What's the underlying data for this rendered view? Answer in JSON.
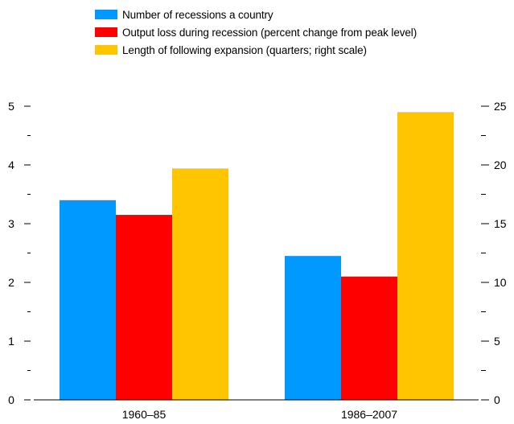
{
  "chart_data": {
    "type": "bar",
    "categories": [
      "1960–85",
      "1986–2007"
    ],
    "series": [
      {
        "name": "Number of recessions a country",
        "color": "#0099ff",
        "axis": "left",
        "values": [
          3.4,
          2.45
        ]
      },
      {
        "name": "Output loss during recession (percent change from peak level)",
        "color": "#ff0000",
        "axis": "left",
        "values": [
          3.15,
          2.1
        ]
      },
      {
        "name": "Length of following expansion (quarters; right scale)",
        "color": "#ffc600",
        "axis": "right",
        "values": [
          19.7,
          24.5
        ]
      }
    ],
    "left_axis": {
      "ylim": [
        0,
        5
      ],
      "ticks": [
        "0",
        "1",
        "2",
        "3",
        "4",
        "5"
      ]
    },
    "right_axis": {
      "ylim": [
        0,
        25
      ],
      "ticks": [
        "0",
        "5",
        "10",
        "15",
        "20",
        "25"
      ]
    },
    "legend_position": "top-center",
    "grid": false
  }
}
